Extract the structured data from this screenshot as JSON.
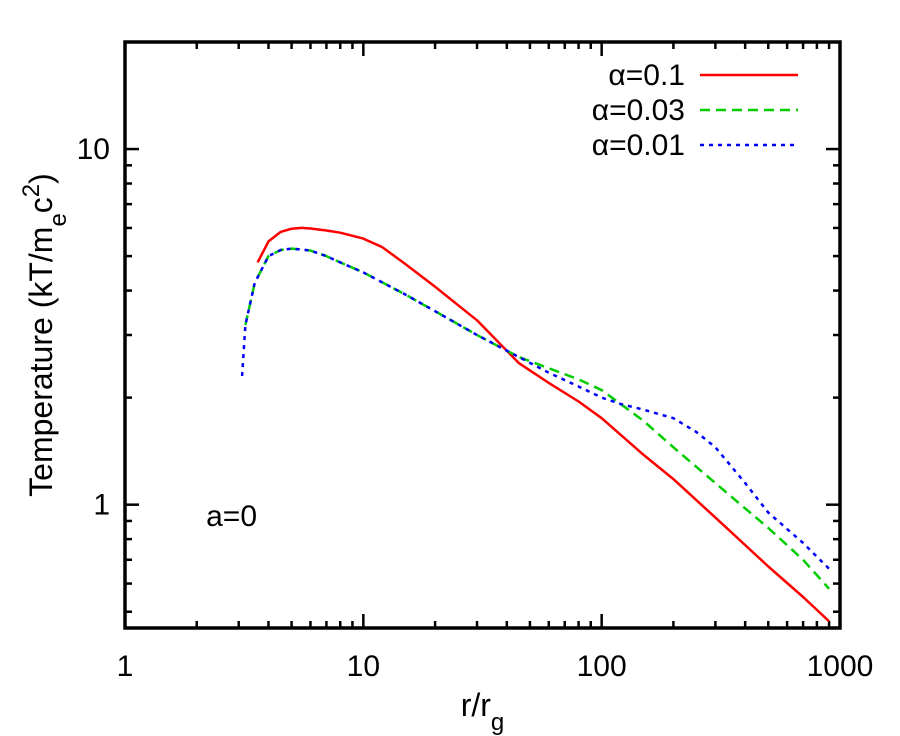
{
  "chart_data": {
    "type": "line",
    "x_scale": "log",
    "y_scale": "log",
    "xlim": [
      1,
      1000
    ],
    "ylim": [
      0.45,
      20
    ],
    "x_ticks": [
      "1",
      "10",
      "100",
      "1000"
    ],
    "y_ticks": [
      "1",
      "10"
    ],
    "xlabel": {
      "main": "r/r",
      "sub": "g"
    },
    "ylabel": {
      "pre": "Temperature (kT/m",
      "sub": "e",
      "mid": "c",
      "sup": "2",
      "post": ")"
    },
    "annotation": "a=0",
    "legend_position": "top-right",
    "grid": false,
    "series": [
      {
        "name": "α=0.1",
        "color": "#ff0000",
        "dash": "solid",
        "x": [
          3.6,
          4.0,
          4.5,
          5.0,
          5.5,
          6.0,
          7.0,
          8.0,
          10.0,
          12.0,
          15.0,
          20.0,
          30.0,
          45.0,
          60.0,
          80.0,
          100.0,
          150.0,
          200.0,
          300.0,
          500.0,
          700.0,
          900.0
        ],
        "y": [
          4.8,
          5.5,
          5.85,
          5.97,
          6.0,
          5.98,
          5.9,
          5.82,
          5.6,
          5.3,
          4.75,
          4.1,
          3.3,
          2.5,
          2.2,
          1.95,
          1.75,
          1.38,
          1.18,
          0.92,
          0.67,
          0.55,
          0.47
        ]
      },
      {
        "name": "α=0.03",
        "color": "#00cc00",
        "dash": "dashed",
        "x": [
          3.2,
          3.5,
          4.0,
          4.5,
          5.0,
          5.5,
          6.0,
          7.0,
          8.0,
          10.0,
          15.0,
          20.0,
          30.0,
          45.0,
          60.0,
          80.0,
          100.0,
          150.0,
          200.0,
          300.0,
          500.0,
          700.0,
          900.0
        ],
        "y": [
          3.2,
          4.2,
          5.0,
          5.2,
          5.25,
          5.22,
          5.18,
          5.0,
          4.8,
          4.5,
          3.9,
          3.5,
          3.0,
          2.6,
          2.42,
          2.25,
          2.1,
          1.72,
          1.45,
          1.15,
          0.86,
          0.7,
          0.58
        ]
      },
      {
        "name": "α=0.01",
        "color": "#0000ff",
        "dash": "dotted",
        "x": [
          3.1,
          3.2,
          3.5,
          4.0,
          4.5,
          5.0,
          5.5,
          6.0,
          7.0,
          8.0,
          10.0,
          15.0,
          20.0,
          30.0,
          45.0,
          60.0,
          80.0,
          100.0,
          120.0,
          150.0,
          200.0,
          250.0,
          300.0,
          400.0,
          500.0,
          700.0,
          900.0
        ],
        "y": [
          2.3,
          3.2,
          4.2,
          5.0,
          5.2,
          5.25,
          5.22,
          5.18,
          5.0,
          4.8,
          4.5,
          3.9,
          3.5,
          3.0,
          2.6,
          2.35,
          2.15,
          2.0,
          1.92,
          1.85,
          1.75,
          1.6,
          1.45,
          1.15,
          0.95,
          0.78,
          0.66
        ]
      }
    ]
  }
}
